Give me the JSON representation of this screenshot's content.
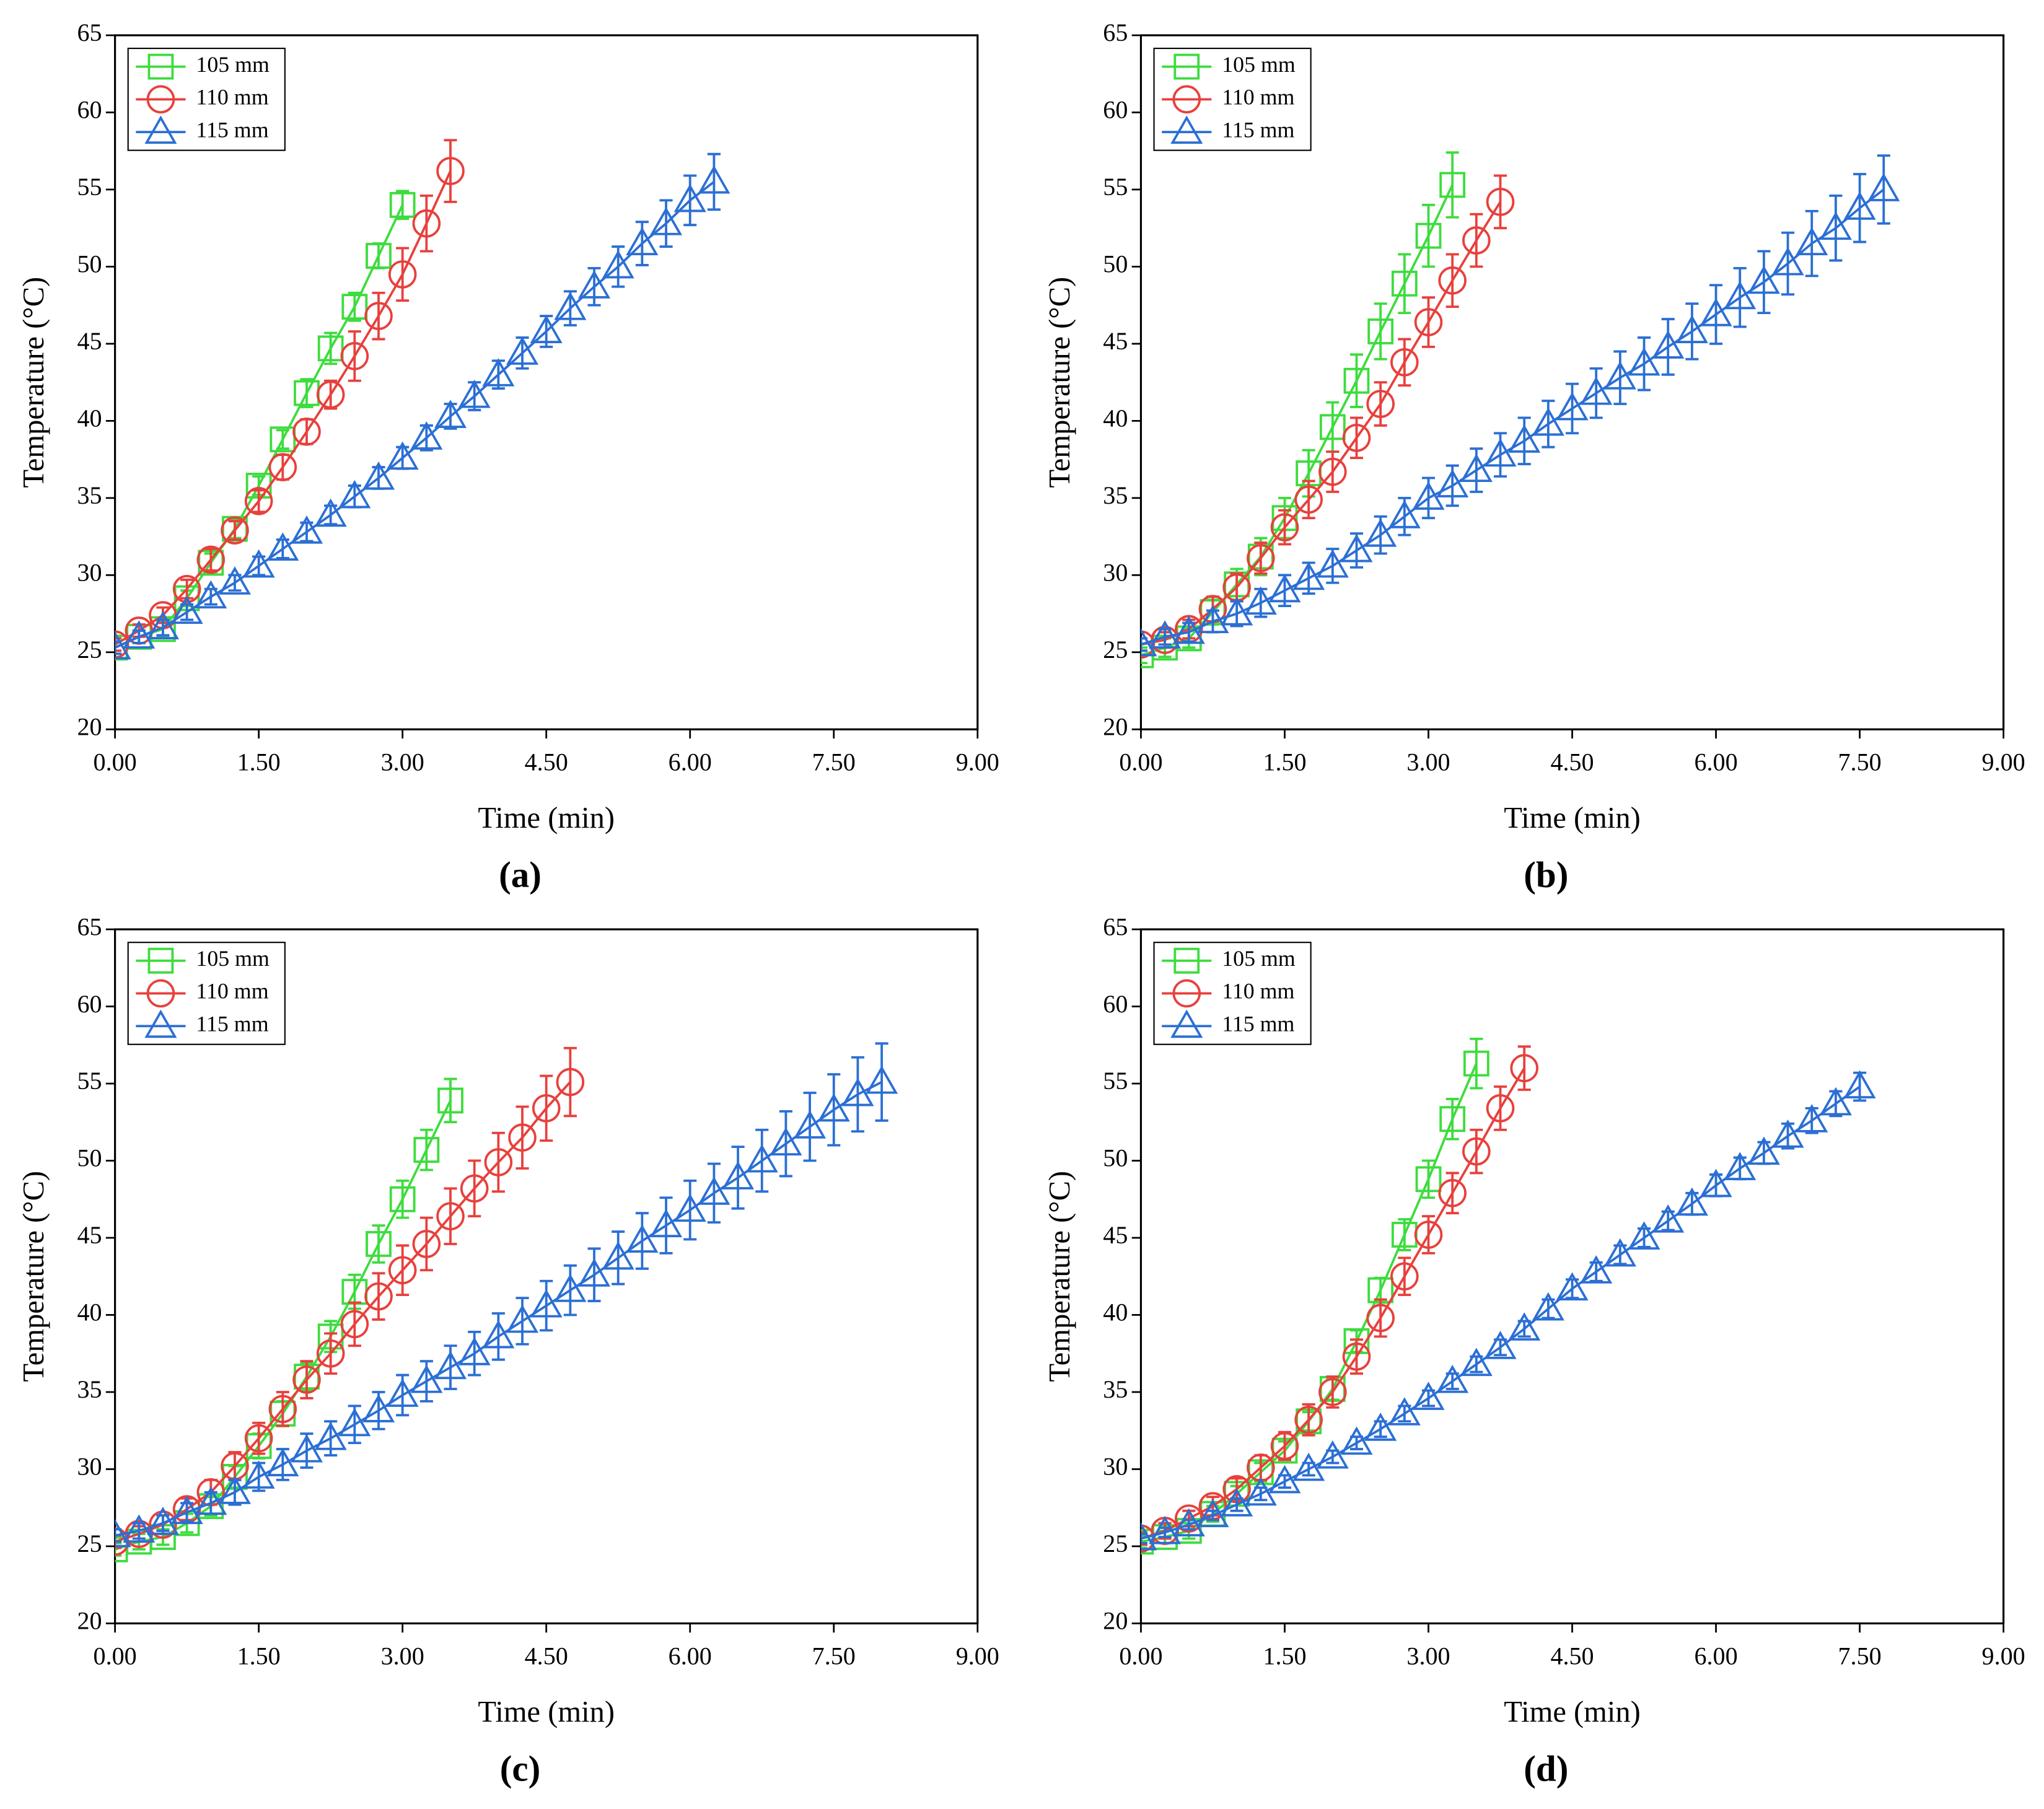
{
  "chart_data": [
    {
      "type": "line",
      "label": "(a)",
      "xlabel": "Time (min)",
      "ylabel": "Temperature (°C)",
      "xlim": [
        0,
        9
      ],
      "ylim": [
        20,
        65
      ],
      "xticks": [
        {
          "value": 0,
          "label": "0.00"
        },
        {
          "value": 1.5,
          "label": "1.50"
        },
        {
          "value": 3,
          "label": "3.00"
        },
        {
          "value": 4.5,
          "label": "4.50"
        },
        {
          "value": 6,
          "label": "6.00"
        },
        {
          "value": 7.5,
          "label": "7.50"
        },
        {
          "value": 9,
          "label": "9.00"
        }
      ],
      "yticks": [
        20,
        25,
        30,
        35,
        40,
        45,
        50,
        55,
        60,
        65
      ],
      "legend": "upper left",
      "series": [
        {
          "name": "105 mm",
          "color": "#3ddc3d",
          "marker": "square",
          "x": [
            0,
            0.25,
            0.5,
            0.75,
            1,
            1.25,
            1.5,
            1.75,
            2,
            2.25,
            2.5,
            2.75,
            3
          ],
          "values": [
            25.3,
            26.0,
            26.5,
            28.5,
            30.8,
            33.0,
            35.8,
            38.8,
            41.8,
            44.7,
            47.4,
            50.7,
            54.0
          ],
          "errors": [
            0.4,
            0.4,
            0.5,
            0.5,
            0.6,
            0.6,
            0.6,
            0.6,
            0.9,
            1.0,
            0.9,
            0.8,
            0.9
          ]
        },
        {
          "name": "110 mm",
          "color": "#e8403c",
          "marker": "circle",
          "x": [
            0,
            0.25,
            0.5,
            0.75,
            1,
            1.25,
            1.5,
            1.75,
            2,
            2.25,
            2.5,
            2.75,
            3,
            3.25,
            3.5
          ],
          "values": [
            25.5,
            26.4,
            27.4,
            29.1,
            31.0,
            32.9,
            34.8,
            37.0,
            39.3,
            41.7,
            44.2,
            46.8,
            49.5,
            52.8,
            56.2
          ],
          "errors": [
            0.4,
            0.4,
            0.5,
            0.6,
            0.7,
            0.6,
            0.7,
            0.8,
            0.8,
            0.9,
            1.6,
            1.5,
            1.7,
            1.8,
            2.0
          ]
        },
        {
          "name": "115 mm",
          "color": "#2b6fd4",
          "marker": "triangle",
          "x": [
            0,
            0.25,
            0.5,
            0.75,
            1,
            1.25,
            1.5,
            1.75,
            2,
            2.25,
            2.5,
            2.75,
            3,
            3.25,
            3.5,
            3.75,
            4,
            4.25,
            4.5,
            4.75,
            5,
            5.25,
            5.5,
            5.75,
            6,
            6.25
          ],
          "values": [
            25.3,
            26.0,
            26.6,
            27.6,
            28.6,
            29.5,
            30.6,
            31.7,
            32.8,
            33.9,
            35.1,
            36.3,
            37.6,
            38.9,
            40.3,
            41.6,
            43.0,
            44.4,
            45.8,
            47.3,
            48.7,
            50.0,
            51.5,
            52.8,
            54.3,
            55.5
          ],
          "errors": [
            0.4,
            0.4,
            0.5,
            0.5,
            0.5,
            0.5,
            0.6,
            0.6,
            0.6,
            0.6,
            0.7,
            0.7,
            0.7,
            0.8,
            0.8,
            0.9,
            0.9,
            1.0,
            1.0,
            1.1,
            1.2,
            1.3,
            1.4,
            1.5,
            1.6,
            1.8
          ]
        }
      ]
    },
    {
      "type": "line",
      "label": "(b)",
      "xlabel": "Time (min)",
      "ylabel": "Temperature (°C)",
      "xlim": [
        0,
        9
      ],
      "ylim": [
        20,
        65
      ],
      "xticks": [
        {
          "value": 0,
          "label": "0.00"
        },
        {
          "value": 1.5,
          "label": "1.50"
        },
        {
          "value": 3,
          "label": "3.00"
        },
        {
          "value": 4.5,
          "label": "4.50"
        },
        {
          "value": 6,
          "label": "6.00"
        },
        {
          "value": 7.5,
          "label": "7.50"
        },
        {
          "value": 9,
          "label": "9.00"
        }
      ],
      "yticks": [
        20,
        25,
        30,
        35,
        40,
        45,
        50,
        55,
        60,
        65
      ],
      "legend": "upper left",
      "series": [
        {
          "name": "105 mm",
          "color": "#3ddc3d",
          "marker": "square",
          "x": [
            0,
            0.25,
            0.5,
            0.75,
            1,
            1.25,
            1.5,
            1.75,
            2,
            2.25,
            2.5,
            2.75,
            3,
            3.25
          ],
          "values": [
            24.8,
            25.3,
            25.9,
            27.6,
            29.4,
            31.2,
            33.7,
            36.6,
            39.6,
            42.6,
            45.8,
            48.9,
            52.0,
            55.3
          ],
          "errors": [
            0.5,
            0.6,
            0.6,
            0.8,
            1.0,
            1.2,
            1.3,
            1.5,
            1.6,
            1.7,
            1.8,
            1.9,
            2.0,
            2.1
          ]
        },
        {
          "name": "110 mm",
          "color": "#e8403c",
          "marker": "circle",
          "x": [
            0,
            0.25,
            0.5,
            0.75,
            1,
            1.25,
            1.5,
            1.75,
            2,
            2.25,
            2.5,
            2.75,
            3,
            3.25,
            3.5,
            3.75
          ],
          "values": [
            25.5,
            25.8,
            26.5,
            27.8,
            29.2,
            31.1,
            33.1,
            34.9,
            36.7,
            38.9,
            41.1,
            43.8,
            46.4,
            49.1,
            51.7,
            54.2
          ],
          "errors": [
            0.4,
            0.5,
            0.6,
            0.8,
            0.9,
            1.0,
            1.1,
            1.2,
            1.3,
            1.3,
            1.4,
            1.5,
            1.6,
            1.7,
            1.7,
            1.7
          ]
        },
        {
          "name": "115 mm",
          "color": "#2b6fd4",
          "marker": "triangle",
          "x": [
            0,
            0.25,
            0.5,
            0.75,
            1,
            1.25,
            1.5,
            1.75,
            2,
            2.25,
            2.5,
            2.75,
            3,
            3.25,
            3.5,
            3.75,
            4,
            4.25,
            4.5,
            4.75,
            5,
            5.25,
            5.5,
            5.75,
            6,
            6.25,
            6.5,
            6.75,
            7,
            7.25,
            7.5,
            7.75
          ],
          "values": [
            25.5,
            26.0,
            26.3,
            27.0,
            27.5,
            28.2,
            29.0,
            29.8,
            30.6,
            31.6,
            32.6,
            33.8,
            35.0,
            35.8,
            36.8,
            37.8,
            38.7,
            39.8,
            40.8,
            41.8,
            42.8,
            43.7,
            44.8,
            45.8,
            46.9,
            48.0,
            49.0,
            50.2,
            51.5,
            52.5,
            53.8,
            55.0
          ],
          "errors": [
            0.4,
            0.5,
            0.6,
            0.7,
            0.8,
            0.9,
            1.0,
            1.0,
            1.1,
            1.1,
            1.2,
            1.2,
            1.3,
            1.3,
            1.4,
            1.4,
            1.5,
            1.5,
            1.6,
            1.6,
            1.7,
            1.7,
            1.8,
            1.8,
            1.9,
            1.9,
            2.0,
            2.0,
            2.1,
            2.1,
            2.2,
            2.2
          ]
        }
      ]
    },
    {
      "type": "line",
      "label": "(c)",
      "xlabel": "Time (min)",
      "ylabel": "Temperature (°C)",
      "xlim": [
        0,
        9
      ],
      "ylim": [
        20,
        65
      ],
      "xticks": [
        {
          "value": 0,
          "label": "0.00"
        },
        {
          "value": 1.5,
          "label": "1.50"
        },
        {
          "value": 3,
          "label": "3.00"
        },
        {
          "value": 4.5,
          "label": "4.50"
        },
        {
          "value": 6,
          "label": "6.00"
        },
        {
          "value": 7.5,
          "label": "7.50"
        },
        {
          "value": 9,
          "label": "9.00"
        }
      ],
      "yticks": [
        20,
        25,
        30,
        35,
        40,
        45,
        50,
        55,
        60,
        65
      ],
      "legend": "upper left",
      "series": [
        {
          "name": "105 mm",
          "color": "#3ddc3d",
          "marker": "square",
          "x": [
            0,
            0.25,
            0.5,
            0.75,
            1,
            1.25,
            1.5,
            1.75,
            2,
            2.25,
            2.5,
            2.75,
            3,
            3.25,
            3.5
          ],
          "values": [
            24.8,
            25.3,
            25.6,
            26.5,
            27.6,
            29.5,
            31.5,
            33.6,
            36.0,
            38.6,
            41.5,
            44.6,
            47.5,
            50.7,
            53.9
          ],
          "errors": [
            0.4,
            0.5,
            0.5,
            0.6,
            0.6,
            0.7,
            0.8,
            0.8,
            0.9,
            1.0,
            1.1,
            1.2,
            1.2,
            1.3,
            1.4
          ]
        },
        {
          "name": "110 mm",
          "color": "#e8403c",
          "marker": "circle",
          "x": [
            0,
            0.25,
            0.5,
            0.75,
            1,
            1.25,
            1.5,
            1.75,
            2,
            2.25,
            2.5,
            2.75,
            3,
            3.25,
            3.5,
            3.75,
            4,
            4.25,
            4.5,
            4.75
          ],
          "values": [
            25.3,
            25.8,
            26.4,
            27.4,
            28.5,
            30.2,
            32.0,
            33.9,
            35.8,
            37.5,
            39.4,
            41.2,
            42.9,
            44.6,
            46.4,
            48.2,
            49.9,
            51.5,
            53.4,
            55.1
          ],
          "errors": [
            0.4,
            0.5,
            0.6,
            0.7,
            0.8,
            0.9,
            1.0,
            1.1,
            1.2,
            1.3,
            1.4,
            1.5,
            1.6,
            1.7,
            1.8,
            1.8,
            1.9,
            2.0,
            2.1,
            2.2
          ]
        },
        {
          "name": "115 mm",
          "color": "#2b6fd4",
          "marker": "triangle",
          "x": [
            0,
            0.25,
            0.5,
            0.75,
            1,
            1.25,
            1.5,
            1.75,
            2,
            2.25,
            2.5,
            2.75,
            3,
            3.25,
            3.5,
            3.75,
            4,
            4.25,
            4.5,
            4.75,
            5,
            5.25,
            5.5,
            5.75,
            6,
            6.25,
            6.5,
            6.75,
            7,
            7.25,
            7.5,
            7.75,
            8
          ],
          "values": [
            25.7,
            26.0,
            26.5,
            27.2,
            27.8,
            28.5,
            29.5,
            30.3,
            31.2,
            32.0,
            32.9,
            33.8,
            34.8,
            35.7,
            36.6,
            37.5,
            38.6,
            39.6,
            40.6,
            41.6,
            42.6,
            43.7,
            44.8,
            45.8,
            46.8,
            47.9,
            48.9,
            50.0,
            51.1,
            52.2,
            53.3,
            54.3,
            55.1
          ],
          "errors": [
            0.4,
            0.5,
            0.5,
            0.6,
            0.7,
            0.8,
            0.9,
            1.0,
            1.1,
            1.1,
            1.2,
            1.2,
            1.3,
            1.3,
            1.4,
            1.4,
            1.5,
            1.5,
            1.6,
            1.6,
            1.7,
            1.7,
            1.8,
            1.8,
            1.9,
            1.9,
            2.0,
            2.0,
            2.1,
            2.2,
            2.3,
            2.4,
            2.5
          ]
        }
      ]
    },
    {
      "type": "line",
      "label": "(d)",
      "xlabel": "Time (min)",
      "ylabel": "Temperature (°C)",
      "xlim": [
        0,
        9
      ],
      "ylim": [
        20,
        65
      ],
      "xticks": [
        {
          "value": 0,
          "label": "0.00"
        },
        {
          "value": 1.5,
          "label": "1.50"
        },
        {
          "value": 3,
          "label": "3.00"
        },
        {
          "value": 4.5,
          "label": "4.50"
        },
        {
          "value": 6,
          "label": "6.00"
        },
        {
          "value": 7.5,
          "label": "7.50"
        },
        {
          "value": 9,
          "label": "9.00"
        }
      ],
      "yticks": [
        20,
        25,
        30,
        35,
        40,
        45,
        50,
        55,
        60,
        65
      ],
      "legend": "upper left",
      "series": [
        {
          "name": "105 mm",
          "color": "#3ddc3d",
          "marker": "square",
          "x": [
            0,
            0.25,
            0.5,
            0.75,
            1,
            1.25,
            1.5,
            1.75,
            2,
            2.25,
            2.5,
            2.75,
            3,
            3.25,
            3.5
          ],
          "values": [
            25.3,
            25.6,
            26.0,
            27.1,
            28.4,
            29.8,
            31.2,
            33.1,
            35.2,
            38.3,
            41.6,
            45.2,
            48.8,
            52.7,
            56.3
          ],
          "errors": [
            0.4,
            0.4,
            0.5,
            0.5,
            0.5,
            0.6,
            0.6,
            0.6,
            0.7,
            0.7,
            0.8,
            1.0,
            1.2,
            1.3,
            1.6
          ]
        },
        {
          "name": "110 mm",
          "color": "#e8403c",
          "marker": "circle",
          "x": [
            0,
            0.25,
            0.5,
            0.75,
            1,
            1.25,
            1.5,
            1.75,
            2,
            2.25,
            2.5,
            2.75,
            3,
            3.25,
            3.5,
            3.75,
            4
          ],
          "values": [
            25.5,
            26.0,
            26.8,
            27.6,
            28.7,
            30.1,
            31.5,
            33.2,
            35.0,
            37.3,
            39.8,
            42.5,
            45.2,
            47.9,
            50.6,
            53.4,
            56.0
          ],
          "errors": [
            0.4,
            0.5,
            0.5,
            0.6,
            0.7,
            0.8,
            0.9,
            1.0,
            1.0,
            1.1,
            1.2,
            1.2,
            1.2,
            1.3,
            1.4,
            1.4,
            1.4
          ]
        },
        {
          "name": "115 mm",
          "color": "#2b6fd4",
          "marker": "triangle",
          "x": [
            0,
            0.25,
            0.5,
            0.75,
            1,
            1.25,
            1.5,
            1.75,
            2,
            2.25,
            2.5,
            2.75,
            3,
            3.25,
            3.5,
            3.75,
            4,
            4.25,
            4.5,
            4.75,
            5,
            5.25,
            5.5,
            5.75,
            6,
            6.25,
            6.5,
            6.75,
            7,
            7.25,
            7.5
          ],
          "values": [
            25.5,
            25.9,
            26.4,
            27.0,
            27.7,
            28.4,
            29.2,
            30.0,
            30.8,
            31.7,
            32.6,
            33.6,
            34.6,
            35.7,
            36.8,
            37.9,
            39.1,
            40.4,
            41.7,
            42.8,
            43.9,
            45.0,
            46.1,
            47.2,
            48.4,
            49.5,
            50.5,
            51.6,
            52.6,
            53.7,
            54.8
          ],
          "errors": [
            0.3,
            0.3,
            0.3,
            0.3,
            0.4,
            0.4,
            0.4,
            0.4,
            0.4,
            0.4,
            0.5,
            0.5,
            0.5,
            0.5,
            0.5,
            0.5,
            0.5,
            0.6,
            0.6,
            0.6,
            0.6,
            0.6,
            0.6,
            0.7,
            0.7,
            0.7,
            0.7,
            0.8,
            0.8,
            0.8,
            0.9
          ]
        }
      ]
    }
  ]
}
